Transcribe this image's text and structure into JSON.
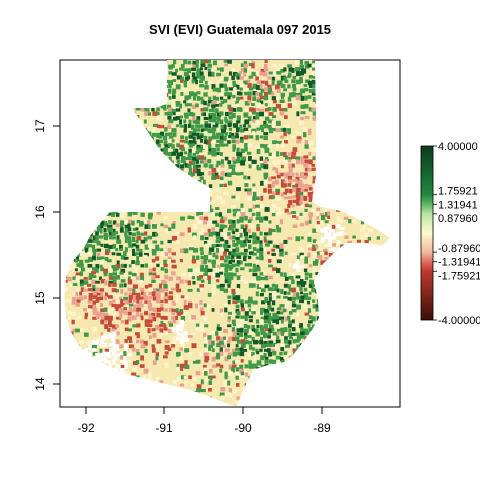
{
  "title": "SVI (EVI) Guatemala 097 2015",
  "map": {
    "x_ticks": [
      "-92",
      "-91",
      "-90",
      "-89"
    ],
    "y_ticks": [
      "14",
      "15",
      "16",
      "17"
    ],
    "extent": {
      "lon": [
        -92.35,
        -88.15
      ],
      "lat": [
        13.75,
        17.85
      ]
    }
  },
  "legend": {
    "labels": [
      "4.00000",
      "1.75921",
      "1.31941",
      "0.87960",
      "-0.87960",
      "-1.31941",
      "-1.75921",
      "-4.00000"
    ],
    "range": [
      -4,
      4
    ],
    "colors": {
      "v_neg4": "#3a0f08",
      "v_neg175": "#c0392b",
      "v_neg131": "#e0675a",
      "v_neg088": "#f2b8a0",
      "v_0": "#fffbd0",
      "v_088": "#b9e3a0",
      "v_131": "#56b45f",
      "v_175": "#1e8a3e",
      "v_4": "#0b3a1a"
    }
  },
  "palette": {
    "neutral": "#f6e9b0",
    "pale": "#fdf4cc",
    "green": "#3c9a48",
    "dark_green": "#0e5a2a",
    "red": "#c84a3a",
    "pink": "#eaa090",
    "white": "#ffffff"
  }
}
